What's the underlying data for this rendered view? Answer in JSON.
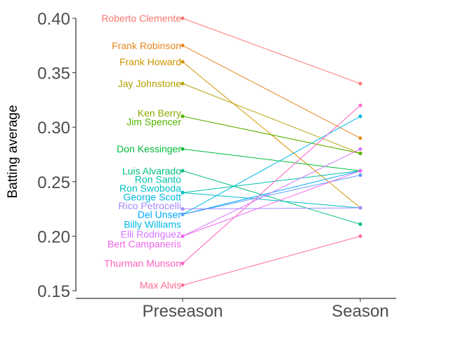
{
  "chart_data": {
    "type": "line",
    "subtype": "slopegraph",
    "title": "",
    "xlabel": "",
    "ylabel": "Batting average",
    "categories": [
      "Preseason",
      "Season"
    ],
    "ylim": [
      0.15,
      0.4
    ],
    "yticks": [
      0.15,
      0.2,
      0.25,
      0.3,
      0.35,
      0.4
    ],
    "ytick_labels": [
      "0.15",
      "0.20",
      "0.25",
      "0.30",
      "0.35",
      "0.40"
    ],
    "grid": false,
    "legend": "none (labels placed at left end of each line)",
    "series": [
      {
        "name": "Roberto Clemente",
        "values": [
          0.4,
          0.34
        ],
        "color": "#F8766D"
      },
      {
        "name": "Frank Robinson",
        "values": [
          0.375,
          0.29
        ],
        "color": "#E7851E"
      },
      {
        "name": "Frank Howard",
        "values": [
          0.36,
          0.226
        ],
        "color": "#D09400"
      },
      {
        "name": "Jay Johnstone",
        "values": [
          0.34,
          0.276
        ],
        "color": "#B2A100"
      },
      {
        "name": "Ken Berry",
        "values": [
          0.31,
          0.276
        ],
        "color": "#8BAB00"
      },
      {
        "name": "Jim Spencer",
        "values": [
          0.31,
          0.276
        ],
        "color": "#55B400"
      },
      {
        "name": "Don Kessinger",
        "values": [
          0.28,
          0.26
        ],
        "color": "#00BA38"
      },
      {
        "name": "Luis Alvarado",
        "values": [
          0.26,
          0.211
        ],
        "color": "#00BF7D"
      },
      {
        "name": "Ron Santo",
        "values": [
          0.24,
          0.26
        ],
        "color": "#00C1A7"
      },
      {
        "name": "Ron Swoboda",
        "values": [
          0.24,
          0.226
        ],
        "color": "#00BFC4"
      },
      {
        "name": "George Scott",
        "values": [
          0.22,
          0.31
        ],
        "color": "#00B8E5"
      },
      {
        "name": "Rico Petrocelli",
        "values": [
          0.22,
          0.26
        ],
        "color": "#00A9FF"
      },
      {
        "name": "Del Unser",
        "values": [
          0.22,
          0.256
        ],
        "color": "#619CFF"
      },
      {
        "name": "Billy Williams",
        "values": [
          0.225,
          0.226
        ],
        "color": "#A58AFF"
      },
      {
        "name": "Elli Rodriguez",
        "values": [
          0.2,
          0.28
        ],
        "color": "#D575FE"
      },
      {
        "name": "Bert Campaneris",
        "values": [
          0.2,
          0.26
        ],
        "color": "#F066EA"
      },
      {
        "name": "Thurman Munson",
        "values": [
          0.175,
          0.32
        ],
        "color": "#FF61C3"
      },
      {
        "name": "Max Alvis",
        "values": [
          0.155,
          0.2
        ],
        "color": "#FF6C91"
      }
    ],
    "labels": [
      {
        "text": "Roberto Clemente",
        "color": "#F8766D",
        "y": 0.4
      },
      {
        "text": "Frank Robinson",
        "color": "#E7851E",
        "y": 0.375
      },
      {
        "text": "Frank Howard",
        "color": "#D09400",
        "y": 0.36
      },
      {
        "text": "Jay Johnstone",
        "color": "#B2A100",
        "y": 0.34
      },
      {
        "text": "Ken Berry",
        "color": "#8BAB00",
        "y": 0.313
      },
      {
        "text": "Jim Spencer",
        "color": "#55B400",
        "y": 0.305
      },
      {
        "text": "Don Kessinger",
        "color": "#00BA38",
        "y": 0.28
      },
      {
        "text": "Luis Alvarado",
        "color": "#00BF7D",
        "y": 0.26
      },
      {
        "text": "Ron Santo",
        "color": "#00C1A7",
        "y": 0.252
      },
      {
        "text": "Ron Swoboda",
        "color": "#00BFC4",
        "y": 0.244
      },
      {
        "text": "George Scott",
        "color": "#00B8E5",
        "y": 0.236
      },
      {
        "text": "Rico Petrocelli",
        "color": "#A58AFF",
        "y": 0.228
      },
      {
        "text": "Del Unser",
        "color": "#00A9FF",
        "y": 0.22
      },
      {
        "text": "Billy Williams",
        "color": "#00B8E5",
        "y": 0.211
      },
      {
        "text": "Elli Rodriguez",
        "color": "#D575FE",
        "y": 0.202
      },
      {
        "text": "Bert Campaneris",
        "color": "#F066EA",
        "y": 0.193
      },
      {
        "text": "Thurman Munson",
        "color": "#FF61C3",
        "y": 0.175
      },
      {
        "text": "Max Alvis",
        "color": "#FF6C91",
        "y": 0.155
      }
    ]
  }
}
